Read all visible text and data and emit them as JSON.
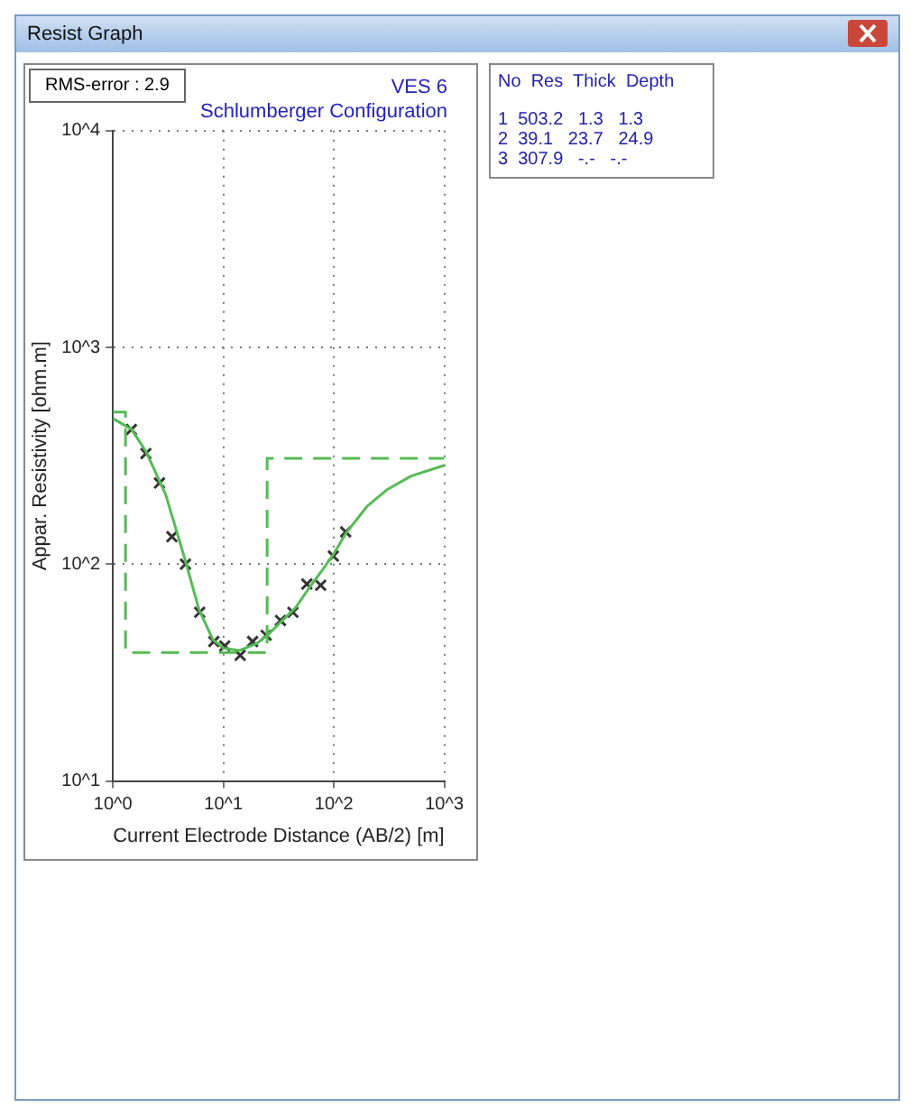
{
  "chart_data": {
    "type": "line",
    "title": "VES 6",
    "subtitle": "Schlumberger Configuration",
    "xlabel": "Current Electrode Distance (AB/2) [m]",
    "ylabel": "Appar. Resistivity [ohm.m]",
    "log": "xy",
    "grid": true,
    "legend": false,
    "xlim": [
      1,
      1000
    ],
    "xticks": [
      {
        "value": 1,
        "label": "10^0"
      },
      {
        "value": 10,
        "label": "10^1"
      },
      {
        "value": 100,
        "label": "10^2"
      },
      {
        "value": 1000,
        "label": "10^3"
      }
    ],
    "ylim": [
      10,
      10000
    ],
    "yticks": [
      {
        "value": 10,
        "label": "10^1"
      },
      {
        "value": 100,
        "label": "10^2"
      },
      {
        "value": 1000,
        "label": "10^3"
      },
      {
        "value": 10000,
        "label": "10^4"
      }
    ],
    "series": [
      {
        "type": "step",
        "color": "#55bb55",
        "line_style": "dashed",
        "marker": "none",
        "x": [
          1,
          1.3,
          24.9,
          1000
        ],
        "values": [
          503.2,
          39.1,
          307.9,
          307.9
        ]
      },
      {
        "color": "#55bb55",
        "line_style": "solid",
        "marker": "none",
        "x": [
          1,
          1.47,
          2,
          3,
          4.5,
          6,
          8,
          10,
          14,
          20,
          25,
          33,
          45,
          60,
          80,
          100,
          130,
          200,
          300,
          500,
          1000
        ],
        "values": [
          470,
          420,
          330,
          210,
          105,
          62,
          45,
          41,
          40,
          43,
          47,
          54,
          63,
          78,
          95,
          112,
          140,
          185,
          220,
          255,
          286
        ]
      },
      {
        "type": "scatter",
        "color": "#333333",
        "marker": "cross",
        "x": [
          1.47,
          1.99,
          2.64,
          3.42,
          4.54,
          6.1,
          8.2,
          10.3,
          14.2,
          18.4,
          24.4,
          32.9,
          42.6,
          57,
          76,
          99,
          128
        ],
        "values": [
          418,
          324,
          237,
          134,
          100,
          60,
          44,
          42,
          38,
          44,
          47,
          55,
          60,
          81,
          80,
          109,
          141
        ]
      }
    ],
    "annotations": [
      "Resist Graph",
      "RMS-error : 2.9",
      "No  Res  Thick  Depth",
      "1  503.2   1.3   1.3",
      "2  39.1   23.7   24.9",
      "3  307.9   -.-   -.-"
    ]
  }
}
